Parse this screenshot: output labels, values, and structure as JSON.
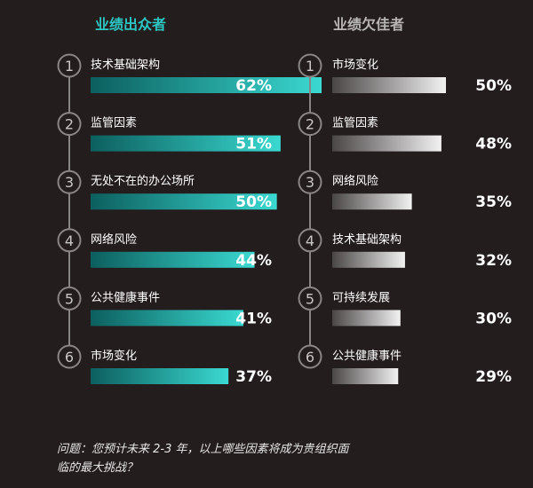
{
  "chart_data": [
    {
      "type": "bar",
      "orientation": "horizontal",
      "title": "业绩出众者",
      "ranks": [
        "1",
        "2",
        "3",
        "4",
        "5",
        "6"
      ],
      "categories": [
        "技术基础架构",
        "监管因素",
        "无处不在的办公场所",
        "网络风险",
        "公共健康事件",
        "市场变化"
      ],
      "values": [
        62,
        51,
        50,
        44,
        41,
        37
      ],
      "value_labels": [
        "62%",
        "51%",
        "50%",
        "44%",
        "41%",
        "37%"
      ],
      "unit": "%",
      "bar_gradient": [
        "#0c5f5e",
        "#3ad9d1"
      ]
    },
    {
      "type": "bar",
      "orientation": "horizontal",
      "title": "业绩欠佳者",
      "ranks": [
        "1",
        "2",
        "3",
        "4",
        "5",
        "6"
      ],
      "categories": [
        "市场变化",
        "监管因素",
        "网络风险",
        "技术基础架构",
        "可持续发展",
        "公共健康事件"
      ],
      "values": [
        50,
        48,
        35,
        32,
        30,
        29
      ],
      "value_labels": [
        "50%",
        "48%",
        "35%",
        "32%",
        "30%",
        "29%"
      ],
      "unit": "%",
      "bar_gradient": [
        "#4a4646",
        "#f2f2f2"
      ]
    }
  ],
  "footnote": "问题：您预计未来 2-3 年，以上哪些因素将成为贵组织面临的最大挑战？"
}
